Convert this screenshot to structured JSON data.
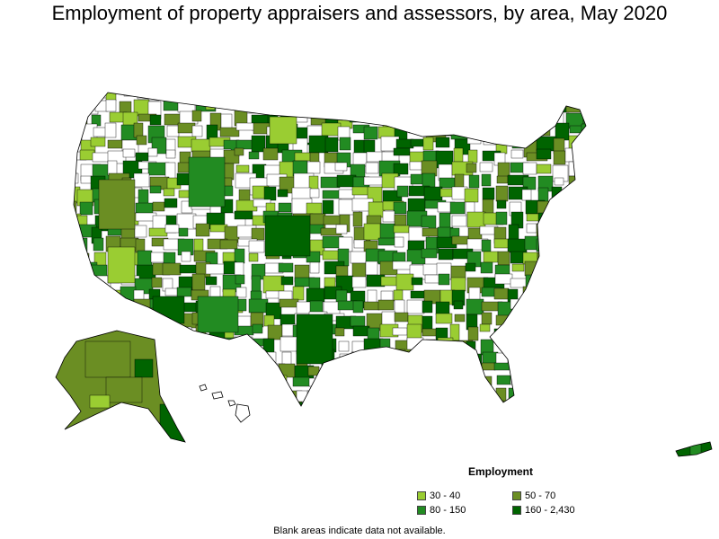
{
  "title": "Employment of property appraisers and assessors, by area, May 2020",
  "legend": {
    "title": "Employment",
    "items": [
      {
        "label": "30 - 40",
        "color": "#9acd32"
      },
      {
        "label": "50 - 70",
        "color": "#6b8e23"
      },
      {
        "label": "80 - 150",
        "color": "#228b22"
      },
      {
        "label": "160 - 2,430",
        "color": "#006400"
      }
    ]
  },
  "note": "Blank areas indicate data not available.",
  "colors": {
    "blank": "#ffffff",
    "border": "#000000"
  }
}
